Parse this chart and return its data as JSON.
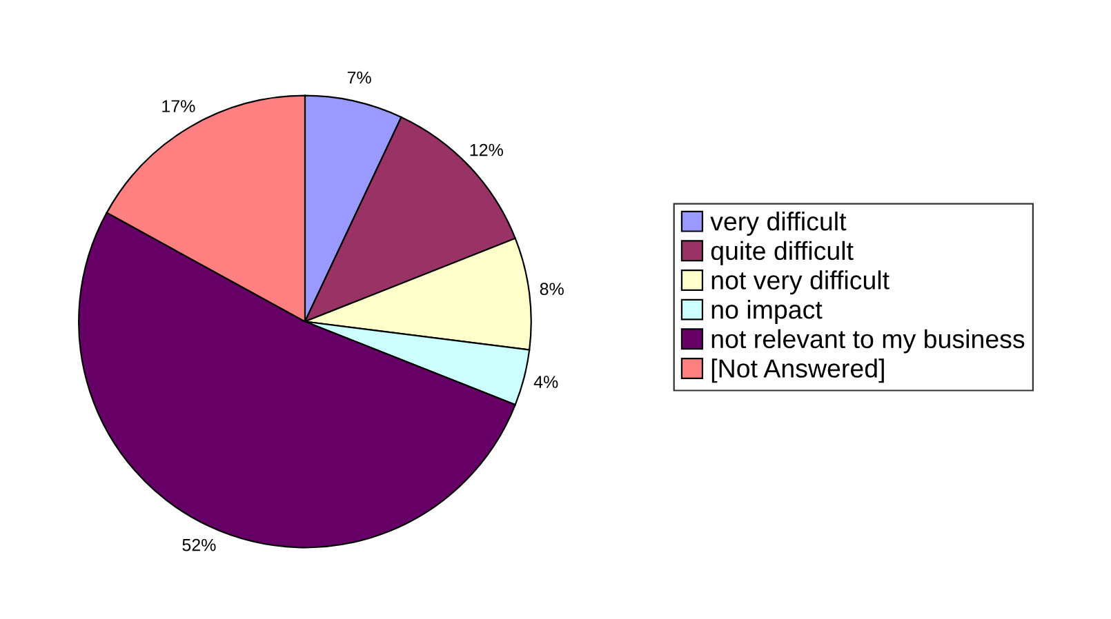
{
  "chart_data": {
    "type": "pie",
    "categories": [
      "very difficult",
      "quite difficult",
      "not very difficult",
      "no impact",
      "not relevant to my business",
      "[Not Answered]"
    ],
    "values": [
      7,
      12,
      8,
      4,
      52,
      17
    ],
    "colors": [
      "#9999ff",
      "#993366",
      "#ffffcc",
      "#ccffff",
      "#660066",
      "#ff8080"
    ],
    "value_labels": [
      "7%",
      "12%",
      "8%",
      "4%",
      "52%",
      "17%"
    ],
    "legend": "right"
  }
}
